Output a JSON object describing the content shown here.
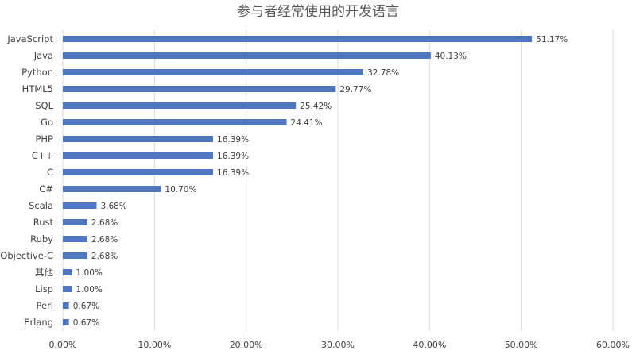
{
  "chart_data": {
    "type": "bar",
    "orientation": "horizontal",
    "title": "参与者经常使用的开发语言",
    "xlabel": "",
    "ylabel": "",
    "xlim": [
      0,
      60
    ],
    "x_ticks": [
      "0.00%",
      "10.00%",
      "20.00%",
      "30.00%",
      "40.00%",
      "50.00%",
      "60.00%"
    ],
    "grid": true,
    "bar_color": "#4F76BE",
    "categories": [
      "JavaScript",
      "Java",
      "Python",
      "HTML5",
      "SQL",
      "Go",
      "PHP",
      "C++",
      "C",
      "C#",
      "Scala",
      "Rust",
      "Ruby",
      "Objective-C",
      "其他",
      "Lisp",
      "Perl",
      "Erlang"
    ],
    "values": [
      51.17,
      40.13,
      32.78,
      29.77,
      25.42,
      24.41,
      16.39,
      16.39,
      16.39,
      10.7,
      3.68,
      2.68,
      2.68,
      2.68,
      1.0,
      1.0,
      0.67,
      0.67
    ],
    "data_labels": [
      "51.17%",
      "40.13%",
      "32.78%",
      "29.77%",
      "25.42%",
      "24.41%",
      "16.39%",
      "16.39%",
      "16.39%",
      "10.70%",
      "3.68%",
      "2.68%",
      "2.68%",
      "2.68%",
      "1.00%",
      "1.00%",
      "0.67%",
      "0.67%"
    ]
  }
}
